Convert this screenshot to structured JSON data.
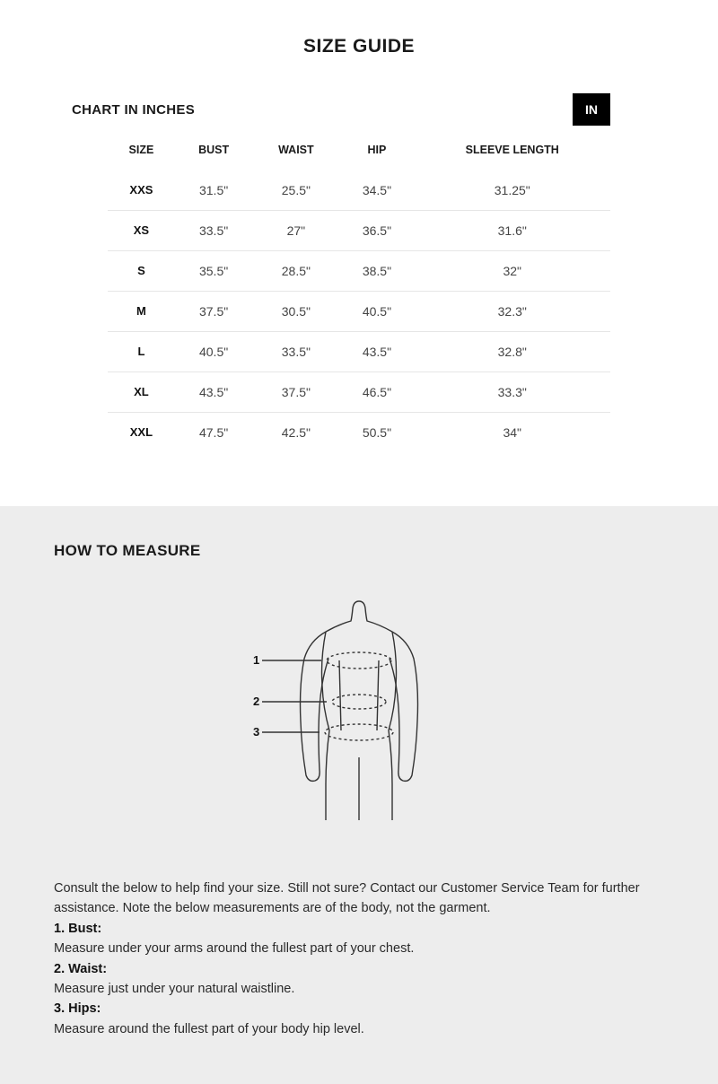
{
  "title": "SIZE GUIDE",
  "chart": {
    "subtitle": "CHART IN INCHES",
    "unit_toggle": "IN",
    "columns": [
      "SIZE",
      "BUST",
      "WAIST",
      "HIP",
      "SLEEVE LENGTH"
    ],
    "rows": [
      {
        "size": "XXS",
        "bust": "31.5\"",
        "waist": "25.5\"",
        "hip": "34.5\"",
        "sleeve": "31.25\""
      },
      {
        "size": "XS",
        "bust": "33.5\"",
        "waist": "27\"",
        "hip": "36.5\"",
        "sleeve": "31.6\""
      },
      {
        "size": "S",
        "bust": "35.5\"",
        "waist": "28.5\"",
        "hip": "38.5\"",
        "sleeve": "32\""
      },
      {
        "size": "M",
        "bust": "37.5\"",
        "waist": "30.5\"",
        "hip": "40.5\"",
        "sleeve": "32.3\""
      },
      {
        "size": "L",
        "bust": "40.5\"",
        "waist": "33.5\"",
        "hip": "43.5\"",
        "sleeve": "32.8\""
      },
      {
        "size": "XL",
        "bust": "43.5\"",
        "waist": "37.5\"",
        "hip": "46.5\"",
        "sleeve": "33.3\""
      },
      {
        "size": "XXL",
        "bust": "47.5\"",
        "waist": "42.5\"",
        "hip": "50.5\"",
        "sleeve": "34\""
      }
    ],
    "border_color": "#e6e6e6",
    "header_font_size": 12.5,
    "cell_font_size": 14
  },
  "measure": {
    "title": "HOW TO MEASURE",
    "figure_labels": {
      "one": "1",
      "two": "2",
      "three": "3"
    },
    "intro": "Consult the below to help find your size. Still not sure? Contact our Customer Service Team for further assistance. Note the below measurements are of the body, not the garment.",
    "items": [
      {
        "label": "1. Bust:",
        "text": "Measure under your arms around the fullest part of your chest."
      },
      {
        "label": "2. Waist:",
        "text": "Measure just under your natural waistline."
      },
      {
        "label": "3. Hips:",
        "text": "Measure around the fullest part of your body hip level."
      }
    ]
  },
  "colors": {
    "page_bg": "#ffffff",
    "section_bg": "#ededed",
    "text": "#1a1a1a",
    "muted_text": "#444444",
    "toggle_bg": "#000000",
    "toggle_fg": "#ffffff",
    "figure_stroke": "#333333"
  }
}
